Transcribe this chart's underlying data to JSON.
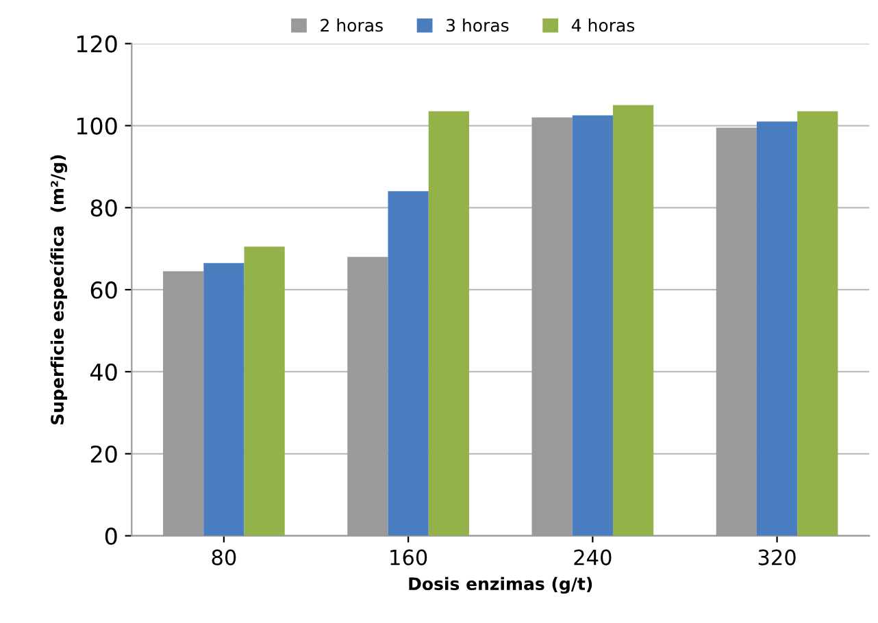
{
  "chart_data": {
    "type": "bar",
    "xlabel": "Dosis enzimas (g/t)",
    "ylabel": "Superficie específica  (m²/g)",
    "categories": [
      "80",
      "160",
      "240",
      "320"
    ],
    "series": [
      {
        "name": "2 horas",
        "color": "#9a9a9a",
        "values": [
          64.5,
          68,
          102,
          99.5
        ]
      },
      {
        "name": "3 horas",
        "color": "#4a7cc0",
        "values": [
          66.5,
          84,
          102.5,
          101
        ]
      },
      {
        "name": "4 horas",
        "color": "#93b24a",
        "values": [
          70.5,
          103.5,
          105,
          103.5
        ]
      }
    ],
    "ylim": [
      0,
      120
    ],
    "yticks": [
      0,
      20,
      40,
      60,
      80,
      100,
      120
    ],
    "grid": "y",
    "legend": "top"
  }
}
